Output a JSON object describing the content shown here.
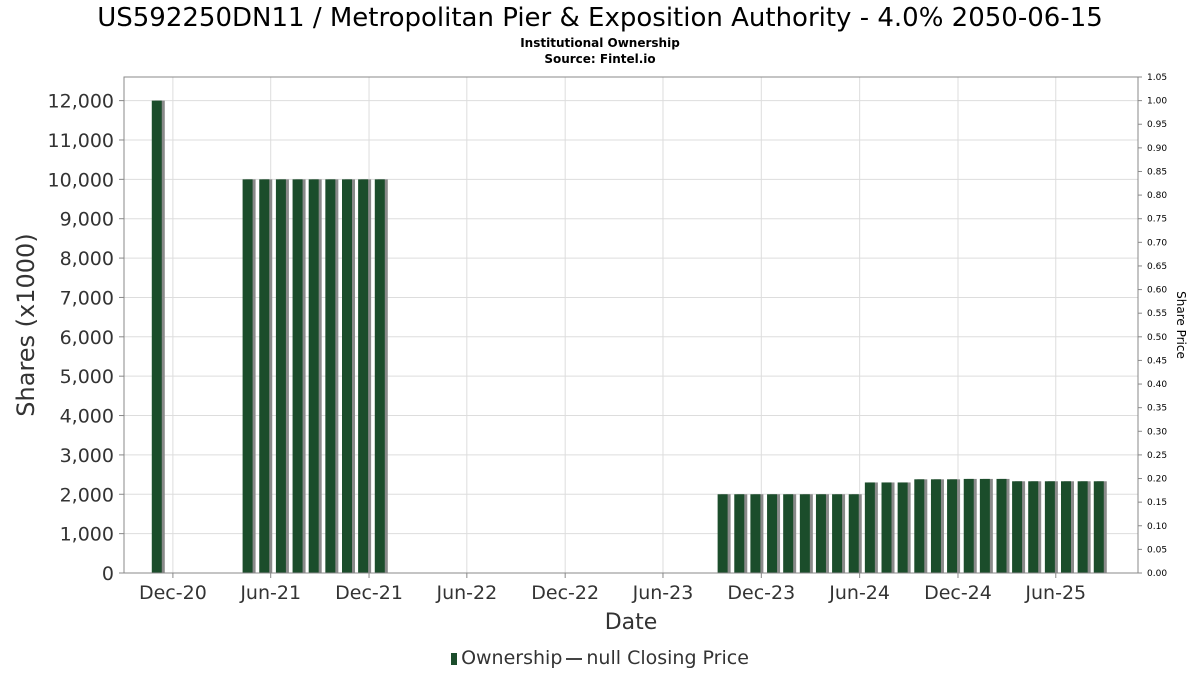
{
  "title": "US592250DN11 / Metropolitan Pier & Exposition Authority - 4.0% 2050-06-15",
  "subtitle1": "Institutional Ownership",
  "subtitle2": "Source: Fintel.io",
  "legend": {
    "ownership": "Ownership",
    "closing_price": "null Closing Price"
  },
  "colors": {
    "bar": "#1b4d2b",
    "bar_shadow": "#8a8a8a",
    "grid": "#dddddd",
    "axis": "#888888"
  },
  "chart_data": {
    "type": "bar",
    "xlabel": "Date",
    "ylabel": "Shares (x1000)",
    "y2label": "Share Price",
    "ylim": [
      0,
      12600
    ],
    "y2lim": [
      0,
      1.05
    ],
    "yticks": [
      0,
      1000,
      2000,
      3000,
      4000,
      5000,
      6000,
      7000,
      8000,
      9000,
      10000,
      11000,
      12000
    ],
    "ytick_labels": [
      "0",
      "1,000",
      "2,000",
      "3,000",
      "4,000",
      "5,000",
      "6,000",
      "7,000",
      "8,000",
      "9,000",
      "10,000",
      "11,000",
      "12,000"
    ],
    "y2ticks": [
      "0.00",
      "0.05",
      "0.10",
      "0.15",
      "0.20",
      "0.25",
      "0.30",
      "0.35",
      "0.40",
      "0.45",
      "0.50",
      "0.55",
      "0.60",
      "0.65",
      "0.70",
      "0.75",
      "0.80",
      "0.85",
      "0.90",
      "0.95",
      "1.00",
      "1.05"
    ],
    "xlim": [
      "2020-09-01",
      "2025-11-01"
    ],
    "xticks": [
      {
        "date": "2020-12-01",
        "label": "Dec-20"
      },
      {
        "date": "2021-06-01",
        "label": "Jun-21"
      },
      {
        "date": "2021-12-01",
        "label": "Dec-21"
      },
      {
        "date": "2022-06-01",
        "label": "Jun-22"
      },
      {
        "date": "2022-12-01",
        "label": "Dec-22"
      },
      {
        "date": "2023-06-01",
        "label": "Jun-23"
      },
      {
        "date": "2023-12-01",
        "label": "Dec-23"
      },
      {
        "date": "2024-06-01",
        "label": "Jun-24"
      },
      {
        "date": "2024-12-01",
        "label": "Dec-24"
      },
      {
        "date": "2025-06-01",
        "label": "Jun-25"
      }
    ],
    "grid": true,
    "legend_position": "bottom",
    "series": [
      {
        "name": "Ownership",
        "x": [
          "2020-11-01",
          "2021-04-19",
          "2021-05-20",
          "2021-06-20",
          "2021-07-21",
          "2021-08-20",
          "2021-09-20",
          "2021-10-21",
          "2021-11-20",
          "2021-12-21",
          "2023-09-20",
          "2023-10-21",
          "2023-11-20",
          "2023-12-21",
          "2024-01-20",
          "2024-02-20",
          "2024-03-21",
          "2024-04-20",
          "2024-05-21",
          "2024-06-20",
          "2024-07-21",
          "2024-08-20",
          "2024-09-20",
          "2024-10-21",
          "2024-11-20",
          "2024-12-21",
          "2025-01-20",
          "2025-02-20",
          "2025-03-21",
          "2025-04-20",
          "2025-05-21",
          "2025-06-20",
          "2025-07-21",
          "2025-08-20"
        ],
        "values": [
          12000,
          10000,
          10000,
          10000,
          10000,
          10000,
          10000,
          10000,
          10000,
          10000,
          2000,
          2000,
          2000,
          2000,
          2000,
          2000,
          2000,
          2000,
          2000,
          2300,
          2300,
          2300,
          2380,
          2380,
          2380,
          2390,
          2390,
          2390,
          2330,
          2330,
          2330,
          2330,
          2330,
          2330
        ]
      }
    ]
  }
}
